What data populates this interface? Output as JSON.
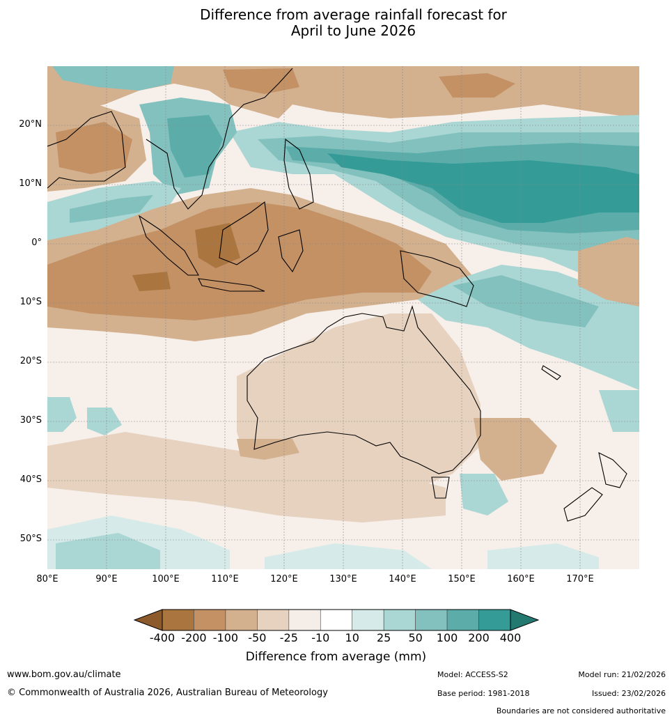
{
  "title": {
    "line1": "Difference from average rainfall forecast for",
    "line2": "April to June 2026"
  },
  "map": {
    "lat_labels": [
      "20°N",
      "10°N",
      "0°",
      "10°S",
      "20°S",
      "30°S",
      "40°S",
      "50°S"
    ],
    "lon_labels": [
      "80°E",
      "90°E",
      "100°E",
      "110°E",
      "120°E",
      "130°E",
      "140°E",
      "150°E",
      "160°E",
      "170°E"
    ]
  },
  "legend": {
    "title": "Difference from average (mm)",
    "ticks": [
      "-400",
      "-200",
      "-100",
      "-50",
      "-25",
      "-10",
      "10",
      "25",
      "50",
      "100",
      "200",
      "400"
    ],
    "colors": [
      "#8d5a2b",
      "#ab7540",
      "#c39164",
      "#d3b08e",
      "#e6d2bf",
      "#f5ede8",
      "#ffffff",
      "#d6ebe9",
      "#aad6d4",
      "#83c1bf",
      "#5cadaa",
      "#349b97",
      "#23786f"
    ]
  },
  "footer": {
    "website": "www.bom.gov.au/climate",
    "copyright": "© Commonwealth of Australia 2026, Australian Bureau of Meteorology",
    "model": "Model: ACCESS-S2",
    "base_period": "Base period: 1981-2018",
    "model_run": "Model run: 21/02/2026",
    "issued": "Issued: 23/02/2026",
    "disclaimer": "Boundaries are not considered authoritative"
  }
}
